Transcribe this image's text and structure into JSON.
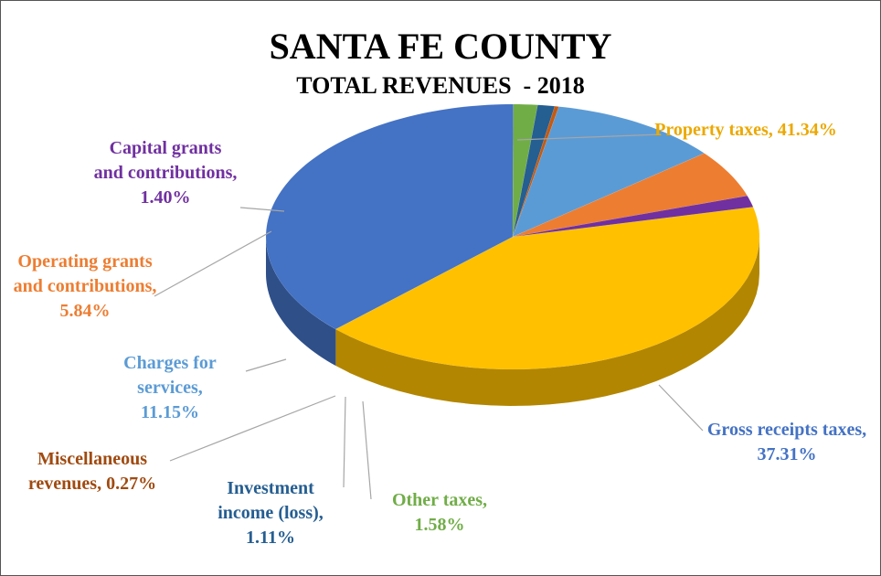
{
  "chart_data": {
    "type": "pie3d",
    "title": "SANTA FE COUNTY",
    "subtitle": "TOTAL REVENUES  - 2018",
    "categories": [
      "Property taxes,",
      "Gross receipts taxes,",
      "Other taxes,",
      "Investment income (loss),",
      "Miscellaneous revenues,",
      "Charges for services,",
      "Operating grants and contributions,",
      "Capital grants and contributions,"
    ],
    "values": [
      41.34,
      37.31,
      1.58,
      1.11,
      0.27,
      11.15,
      5.84,
      1.4
    ],
    "value_labels": [
      "41.34%",
      "37.31%",
      "1.58%",
      "1.11%",
      "0.27%",
      "11.15%",
      "5.84%",
      "1.40%"
    ],
    "colors": [
      "#FFC000",
      "#4472C4",
      "#70AD47",
      "#255E91",
      "#C55A11",
      "#5B9BD5",
      "#ED7D31",
      "#7030A0"
    ]
  }
}
